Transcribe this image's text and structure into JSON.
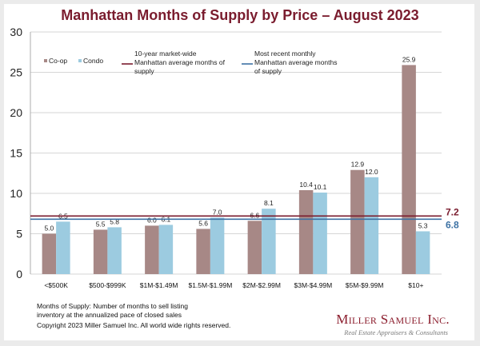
{
  "chart_data": {
    "type": "bar",
    "title": "Manhattan Months of Supply by Price – August 2023",
    "xlabel": "",
    "ylabel": "",
    "ylim": [
      0,
      30
    ],
    "yticks": [
      "0",
      "5",
      "10",
      "15",
      "20",
      "25",
      "30"
    ],
    "grid": true,
    "legend_position": "top-left",
    "categories": [
      "<$500K",
      "$500-$999K",
      "$1M-$1.49M",
      "$1.5M-$1.99M",
      "$2M-$2.99M",
      "$3M-$4.99M",
      "$5M-$9.99M",
      "$10+"
    ],
    "series": [
      {
        "name": "Co-op",
        "color": "#a78886",
        "values": [
          5.0,
          5.5,
          6.0,
          5.6,
          6.6,
          10.4,
          12.9,
          25.9
        ],
        "labels": [
          "5.0",
          "5.5",
          "6.0",
          "5.6",
          "6.6",
          "10.4",
          "12.9",
          "25.9"
        ]
      },
      {
        "name": "Condo",
        "color": "#9ccbe0",
        "values": [
          6.5,
          5.8,
          6.1,
          7.0,
          8.1,
          10.1,
          12.0,
          5.3
        ],
        "labels": [
          "6.5",
          "5.8",
          "6.1",
          "7.0",
          "8.1",
          "10.1",
          "12.0",
          "5.3"
        ]
      }
    ],
    "reference_lines": [
      {
        "name": "10-year market-wide Manhattan average months of supply",
        "legend_lines": [
          "10-year market-wide",
          "Manhattan average months of",
          "supply"
        ],
        "value": 7.2,
        "label": "7.2",
        "color": "#7a1c2e"
      },
      {
        "name": "Most recent monthly Manhattan average months of supply",
        "legend_lines": [
          "Most recent monthly",
          "Manhattan average months",
          "of supply"
        ],
        "value": 6.8,
        "label": "6.8",
        "color": "#3d72a4"
      }
    ]
  },
  "footer": {
    "note_line1": "Months of Supply: Number of months to sell listing",
    "note_line2": "inventory at the annualized pace of closed sales",
    "copyright": "Copyright 2023 Miller Samuel Inc.  All world wide rights reserved.",
    "logo_name": "Miller Samuel Inc.",
    "logo_tagline": "Real Estate Appraisers & Consultants"
  },
  "colors": {
    "title": "#7a1c2e",
    "grid": "#c8c8c8"
  }
}
